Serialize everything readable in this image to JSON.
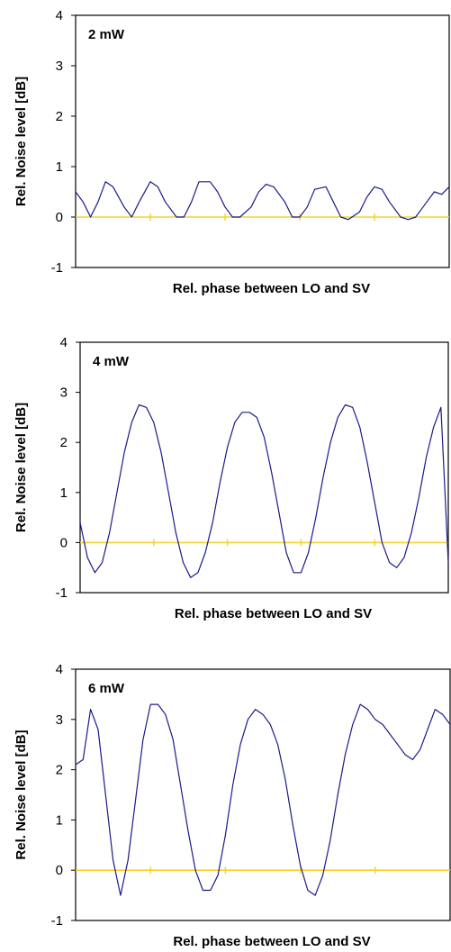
{
  "chart_data": [
    {
      "type": "line",
      "panel_label": "2 mW",
      "xlabel": "Rel. phase between LO and SV",
      "ylabel": "Rel. Noise level [dB]",
      "ylim": [
        -1,
        4
      ],
      "yticks": [
        "-1",
        "0",
        "1",
        "2",
        "3",
        "4"
      ],
      "grid": false,
      "reference_line": {
        "y": 0,
        "color": "#f2d32e"
      },
      "series_color": "#1a1a8c",
      "x": [
        0,
        0.02,
        0.04,
        0.06,
        0.08,
        0.1,
        0.13,
        0.15,
        0.17,
        0.2,
        0.22,
        0.24,
        0.27,
        0.29,
        0.31,
        0.33,
        0.36,
        0.38,
        0.4,
        0.42,
        0.44,
        0.47,
        0.49,
        0.51,
        0.53,
        0.56,
        0.58,
        0.6,
        0.62,
        0.64,
        0.67,
        0.69,
        0.71,
        0.73,
        0.76,
        0.78,
        0.8,
        0.82,
        0.84,
        0.87,
        0.89,
        0.91,
        0.93,
        0.96,
        0.98,
        1.0
      ],
      "values": [
        0.5,
        0.3,
        0.0,
        0.3,
        0.7,
        0.6,
        0.2,
        0.0,
        0.3,
        0.7,
        0.6,
        0.3,
        0.0,
        0.0,
        0.3,
        0.7,
        0.7,
        0.5,
        0.2,
        0.0,
        0.0,
        0.2,
        0.5,
        0.65,
        0.6,
        0.3,
        0.0,
        0.0,
        0.2,
        0.55,
        0.6,
        0.3,
        0.0,
        -0.05,
        0.1,
        0.4,
        0.6,
        0.55,
        0.3,
        0.0,
        -0.05,
        0.0,
        0.2,
        0.5,
        0.45,
        0.6
      ]
    },
    {
      "type": "line",
      "panel_label": "4 mW",
      "xlabel": "Rel. phase between LO and SV",
      "ylabel": "Rel. Noise level [dB]",
      "ylim": [
        -1,
        4
      ],
      "yticks": [
        "-1",
        "0",
        "1",
        "2",
        "3",
        "4"
      ],
      "grid": false,
      "reference_line": {
        "y": 0,
        "color": "#f2d32e"
      },
      "series_color": "#1a1a8c",
      "x": [
        0,
        0.02,
        0.04,
        0.06,
        0.08,
        0.1,
        0.12,
        0.14,
        0.16,
        0.18,
        0.2,
        0.22,
        0.24,
        0.26,
        0.28,
        0.3,
        0.32,
        0.34,
        0.36,
        0.38,
        0.4,
        0.42,
        0.44,
        0.46,
        0.48,
        0.5,
        0.52,
        0.54,
        0.56,
        0.58,
        0.6,
        0.62,
        0.64,
        0.66,
        0.68,
        0.7,
        0.72,
        0.74,
        0.76,
        0.78,
        0.8,
        0.82,
        0.84,
        0.86,
        0.88,
        0.9,
        0.92,
        0.94,
        0.96,
        0.98,
        1.0
      ],
      "values": [
        0.4,
        -0.3,
        -0.6,
        -0.4,
        0.2,
        1.0,
        1.8,
        2.4,
        2.75,
        2.7,
        2.4,
        1.8,
        1.0,
        0.2,
        -0.4,
        -0.7,
        -0.6,
        -0.2,
        0.4,
        1.2,
        1.9,
        2.4,
        2.6,
        2.6,
        2.5,
        2.1,
        1.4,
        0.6,
        -0.2,
        -0.6,
        -0.6,
        -0.2,
        0.5,
        1.3,
        2.0,
        2.5,
        2.75,
        2.7,
        2.3,
        1.6,
        0.8,
        0.0,
        -0.4,
        -0.5,
        -0.3,
        0.2,
        0.9,
        1.7,
        2.3,
        2.7,
        -0.4
      ]
    },
    {
      "type": "line",
      "panel_label": "6 mW",
      "xlabel": "Rel. phase between LO and SV",
      "ylabel": "Rel. Noise level [dB]",
      "ylim": [
        -1,
        4
      ],
      "yticks": [
        "-1",
        "0",
        "1",
        "2",
        "3",
        "4"
      ],
      "grid": false,
      "reference_line": {
        "y": 0,
        "color": "#f2d32e"
      },
      "series_color": "#1a1a8c",
      "x": [
        0,
        0.02,
        0.04,
        0.06,
        0.08,
        0.1,
        0.12,
        0.14,
        0.16,
        0.18,
        0.2,
        0.22,
        0.24,
        0.26,
        0.28,
        0.3,
        0.32,
        0.34,
        0.36,
        0.38,
        0.4,
        0.42,
        0.44,
        0.46,
        0.48,
        0.5,
        0.52,
        0.54,
        0.56,
        0.58,
        0.6,
        0.62,
        0.64,
        0.66,
        0.68,
        0.7,
        0.72,
        0.74,
        0.76,
        0.78,
        0.8,
        0.82,
        0.84,
        0.86,
        0.88,
        0.9,
        0.92,
        0.94,
        0.96,
        0.98,
        1.0
      ],
      "values": [
        2.1,
        2.2,
        3.2,
        2.8,
        1.5,
        0.2,
        -0.5,
        0.2,
        1.4,
        2.6,
        3.3,
        3.3,
        3.1,
        2.6,
        1.7,
        0.8,
        0.0,
        -0.4,
        -0.4,
        -0.1,
        0.7,
        1.7,
        2.5,
        3.0,
        3.2,
        3.1,
        2.9,
        2.5,
        1.8,
        0.9,
        0.1,
        -0.4,
        -0.5,
        -0.1,
        0.6,
        1.5,
        2.3,
        2.9,
        3.3,
        3.2,
        3.0,
        2.9,
        2.7,
        2.5,
        2.3,
        2.2,
        2.4,
        2.8,
        3.2,
        3.1,
        2.9
      ]
    }
  ]
}
